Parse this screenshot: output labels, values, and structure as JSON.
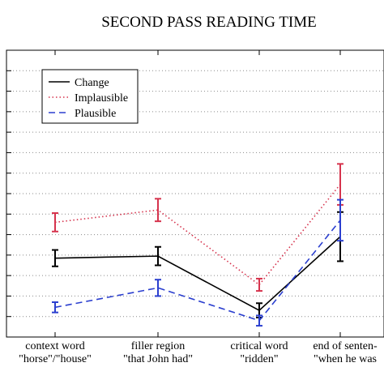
{
  "chart_data": {
    "type": "line",
    "title": "SECOND PASS READING TIME",
    "xlabel": "",
    "ylabel": "",
    "categories": [
      [
        "context word",
        "\"horse\"/\"house\""
      ],
      [
        "filler region",
        "\"that John had\""
      ],
      [
        "critical word",
        "\"ridden\""
      ],
      [
        "end of senten-",
        "\"when he was"
      ]
    ],
    "ylim": [
      0,
      14
    ],
    "y_ticks": [
      1,
      2,
      3,
      4,
      5,
      6,
      7,
      8,
      9,
      10,
      11,
      12,
      13
    ],
    "y_tick_labels_visible": false,
    "grid": "horizontal-dotted",
    "legend_position": "top-left",
    "series": [
      {
        "name": "Change",
        "style": "solid",
        "color": "#000000",
        "values": [
          3.85,
          3.95,
          1.3,
          4.9
        ],
        "errors": [
          0.4,
          0.45,
          0.35,
          1.2
        ]
      },
      {
        "name": "Implausible",
        "style": "dotted",
        "color": "#d6334d",
        "values": [
          5.6,
          6.2,
          2.55,
          7.45
        ],
        "errors": [
          0.45,
          0.55,
          0.3,
          1.0
        ]
      },
      {
        "name": "Plausible",
        "style": "dashed",
        "color": "#2b3fcf",
        "values": [
          1.45,
          2.4,
          0.8,
          5.7
        ],
        "errors": [
          0.25,
          0.4,
          0.25,
          1.0
        ]
      }
    ]
  }
}
